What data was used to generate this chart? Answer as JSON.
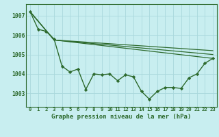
{
  "title": "Graphe pression niveau de la mer (hPa)",
  "background_color": "#c8eef0",
  "grid_color": "#aad8dc",
  "line_color": "#2d6a2d",
  "xlim": [
    -0.5,
    23.5
  ],
  "ylim": [
    1002.3,
    1007.6
  ],
  "yticks": [
    1003,
    1004,
    1005,
    1006,
    1007
  ],
  "xtick_labels": [
    "0",
    "1",
    "2",
    "3",
    "4",
    "5",
    "6",
    "7",
    "8",
    "9",
    "10",
    "11",
    "12",
    "13",
    "14",
    "15",
    "16",
    "17",
    "18",
    "19",
    "20",
    "21",
    "22",
    "23"
  ],
  "line1_x": [
    0,
    1,
    2,
    3,
    4,
    5,
    6,
    7,
    8,
    9,
    10,
    11,
    12,
    13,
    14,
    15,
    16,
    17,
    18,
    19,
    20,
    21,
    22,
    23
  ],
  "line1_y": [
    1007.2,
    1006.3,
    1006.2,
    1005.8,
    1004.4,
    1004.1,
    1004.25,
    1003.2,
    1004.0,
    1003.95,
    1004.0,
    1003.65,
    1003.95,
    1003.85,
    1003.1,
    1002.7,
    1003.1,
    1003.3,
    1003.3,
    1003.25,
    1003.8,
    1004.0,
    1004.55,
    1004.8
  ],
  "line2_x": [
    0,
    3,
    23
  ],
  "line2_y": [
    1007.2,
    1005.75,
    1004.8
  ],
  "line3_x": [
    0,
    3,
    23
  ],
  "line3_y": [
    1007.2,
    1005.75,
    1005.0
  ],
  "line4_x": [
    0,
    3,
    23
  ],
  "line4_y": [
    1007.2,
    1005.75,
    1005.2
  ]
}
